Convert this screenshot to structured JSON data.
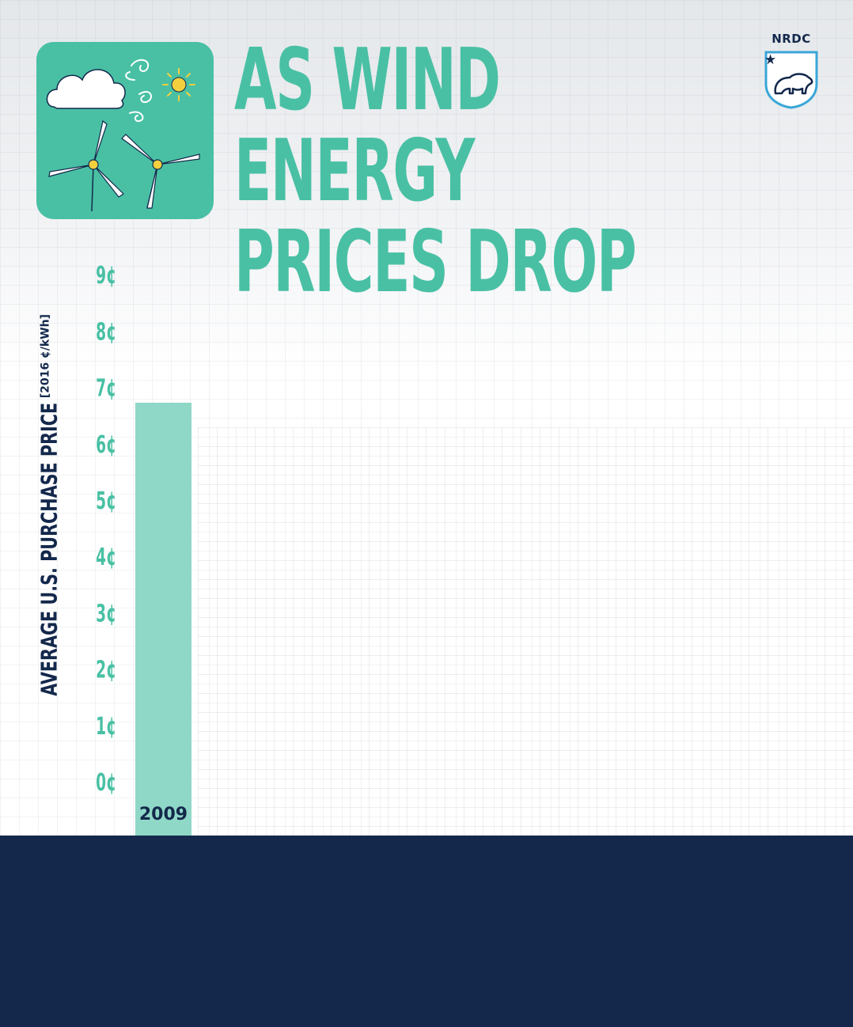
{
  "header": {
    "title_lines": [
      "AS WIND",
      "ENERGY",
      "PRICES DROP"
    ]
  },
  "logo": {
    "text": "NRDC",
    "icon": "polar-bear-shield-icon"
  },
  "illustration": {
    "icons": [
      "cloud-icon",
      "wind-swirl-icon",
      "sun-icon",
      "wind-turbine-icon"
    ]
  },
  "colors": {
    "accent_teal": "#49c0a4",
    "bar_teal": "#8fd8c7",
    "navy": "#13284b",
    "sun_yellow": "#f4d03f"
  },
  "chart_data": {
    "type": "bar",
    "title": "AS WIND ENERGY PRICES DROP",
    "ylabel": "AVERAGE U.S. PURCHASE PRICE",
    "yunit": "[2016 ¢/kWh]",
    "xlabel": "",
    "categories": [
      "2009"
    ],
    "values": [
      6.7
    ],
    "ylim": [
      0,
      9
    ],
    "yticks": [
      0,
      1,
      2,
      3,
      4,
      5,
      6,
      7,
      8,
      9
    ],
    "ytick_labels": [
      "0¢",
      "1¢",
      "2¢",
      "3¢",
      "4¢",
      "5¢",
      "6¢",
      "7¢",
      "8¢",
      "9¢"
    ],
    "grid": true,
    "legend": "none"
  }
}
